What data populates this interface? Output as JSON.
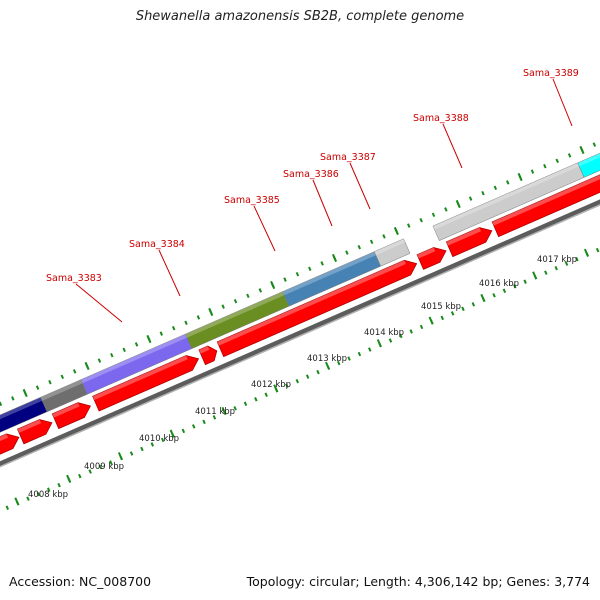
{
  "title": "Shewanella amazonensis SB2B, complete genome",
  "footer": {
    "accession": "Accession: NC_008700",
    "genome_info": "Topology: circular; Length: 4,306,142 bp; Genes: 3,774"
  },
  "colors": {
    "cds_arrow": "#ff0000",
    "gene_label": "#cc0000",
    "tick": "#1a8a1a",
    "backbone": "#888888",
    "segment_colors": [
      "#000080",
      "#6e6e6e",
      "#7b68ee",
      "#6b8e23",
      "#4682b4",
      "#cccccc",
      "#00ffff"
    ]
  },
  "gene_labels": [
    "Sama_3383",
    "Sama_3384",
    "Sama_3385",
    "Sama_3386",
    "Sama_3387",
    "Sama_3388",
    "Sama_3389"
  ],
  "scale_labels": [
    "4008 kbp",
    "4009 kbp",
    "4010 kbp",
    "4011 kbp",
    "4012 kbp",
    "4013 kbp",
    "4014 kbp",
    "4015 kbp",
    "4016 kbp",
    "4017 kbp"
  ]
}
